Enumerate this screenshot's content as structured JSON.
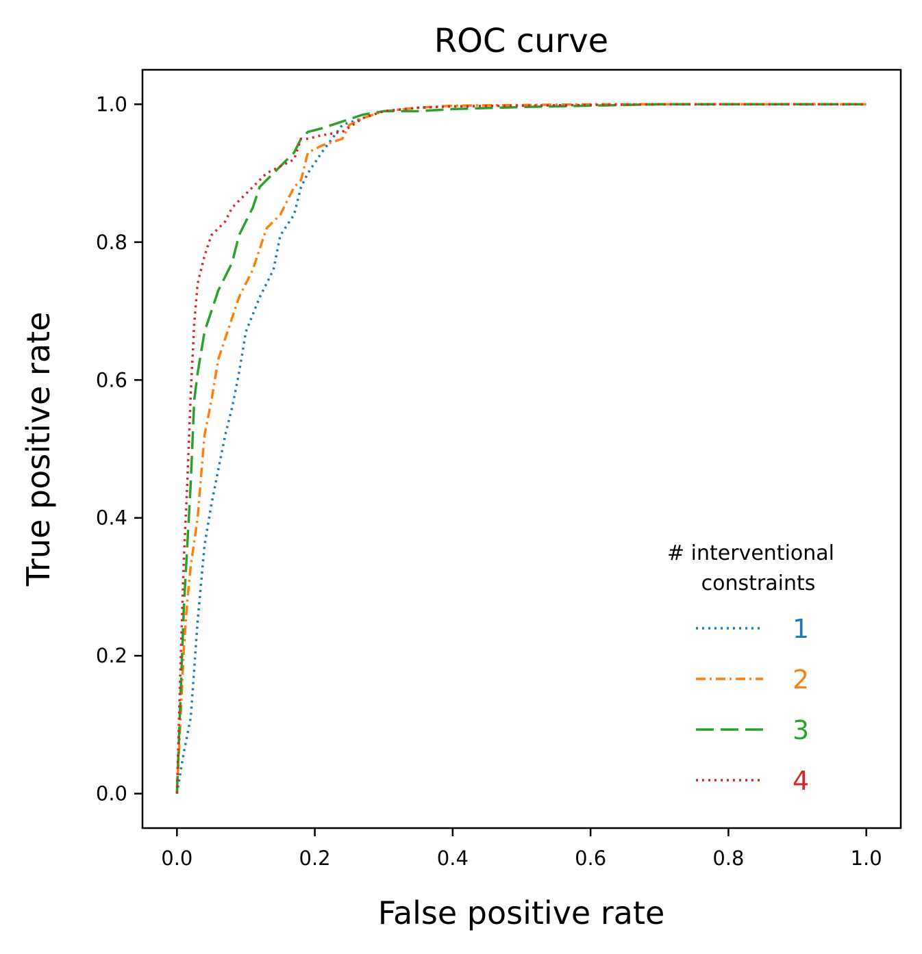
{
  "chart_data": {
    "type": "line",
    "title": "ROC curve",
    "xlabel": "False positive rate",
    "ylabel": "True positive rate",
    "xlim": [
      -0.05,
      1.05
    ],
    "ylim": [
      -0.05,
      1.05
    ],
    "xticks": [
      0.0,
      0.2,
      0.4,
      0.6,
      0.8,
      1.0
    ],
    "xtick_labels": [
      "0.0",
      "0.2",
      "0.4",
      "0.6",
      "0.8",
      "1.0"
    ],
    "yticks": [
      0.0,
      0.2,
      0.4,
      0.6,
      0.8,
      1.0
    ],
    "ytick_labels": [
      "0.0",
      "0.2",
      "0.4",
      "0.6",
      "0.8",
      "1.0"
    ],
    "grid": false,
    "legend": {
      "title_lines": [
        "# interventional",
        "constraints"
      ],
      "placement": "lower-right"
    },
    "series": [
      {
        "name": "1",
        "color": "#1f77b4",
        "dash": "dotted",
        "x": [
          0.0,
          0.01,
          0.02,
          0.03,
          0.04,
          0.05,
          0.06,
          0.07,
          0.08,
          0.09,
          0.1,
          0.12,
          0.14,
          0.15,
          0.17,
          0.18,
          0.19,
          0.21,
          0.24,
          0.27,
          0.3,
          0.35,
          0.4,
          0.5,
          0.6,
          0.7,
          0.8,
          0.9,
          1.0
        ],
        "y": [
          0.0,
          0.06,
          0.11,
          0.25,
          0.36,
          0.42,
          0.47,
          0.52,
          0.56,
          0.61,
          0.67,
          0.72,
          0.76,
          0.81,
          0.84,
          0.88,
          0.9,
          0.93,
          0.97,
          0.98,
          0.99,
          0.995,
          0.997,
          0.998,
          0.999,
          1.0,
          1.0,
          1.0,
          1.0
        ]
      },
      {
        "name": "2",
        "color": "#ff7f0e",
        "dash": "dashdot",
        "x": [
          0.0,
          0.01,
          0.015,
          0.02,
          0.03,
          0.04,
          0.05,
          0.06,
          0.07,
          0.08,
          0.09,
          0.1,
          0.11,
          0.12,
          0.13,
          0.15,
          0.17,
          0.18,
          0.19,
          0.21,
          0.24,
          0.25,
          0.27,
          0.3,
          0.35,
          0.4,
          0.5,
          0.6,
          0.7,
          0.8,
          0.9,
          1.0
        ],
        "y": [
          0.0,
          0.21,
          0.28,
          0.33,
          0.4,
          0.52,
          0.57,
          0.63,
          0.66,
          0.69,
          0.72,
          0.74,
          0.76,
          0.79,
          0.82,
          0.84,
          0.88,
          0.89,
          0.93,
          0.94,
          0.95,
          0.97,
          0.98,
          0.99,
          0.995,
          0.998,
          0.999,
          1.0,
          1.0,
          1.0,
          1.0,
          1.0
        ]
      },
      {
        "name": "3",
        "color": "#2ca02c",
        "dash": "longdash",
        "x": [
          0.0,
          0.01,
          0.02,
          0.025,
          0.03,
          0.04,
          0.05,
          0.06,
          0.07,
          0.08,
          0.09,
          0.1,
          0.11,
          0.12,
          0.13,
          0.15,
          0.17,
          0.18,
          0.19,
          0.21,
          0.24,
          0.27,
          0.3,
          0.35,
          0.4,
          0.5,
          0.6,
          0.7,
          0.8,
          0.9,
          1.0
        ],
        "y": [
          0.0,
          0.27,
          0.45,
          0.57,
          0.61,
          0.67,
          0.7,
          0.73,
          0.75,
          0.77,
          0.81,
          0.83,
          0.85,
          0.88,
          0.89,
          0.91,
          0.93,
          0.95,
          0.96,
          0.965,
          0.975,
          0.985,
          0.99,
          0.99,
          0.993,
          0.996,
          0.998,
          1.0,
          1.0,
          1.0,
          1.0
        ]
      },
      {
        "name": "4",
        "color": "#d62728",
        "dash": "dotted",
        "x": [
          0.0,
          0.005,
          0.01,
          0.015,
          0.02,
          0.025,
          0.03,
          0.04,
          0.05,
          0.06,
          0.07,
          0.08,
          0.09,
          0.1,
          0.11,
          0.12,
          0.13,
          0.15,
          0.17,
          0.18,
          0.19,
          0.21,
          0.24,
          0.27,
          0.3,
          0.35,
          0.4,
          0.5,
          0.6,
          0.7,
          0.8,
          0.9,
          1.0
        ],
        "y": [
          0.0,
          0.18,
          0.34,
          0.45,
          0.58,
          0.68,
          0.74,
          0.78,
          0.81,
          0.82,
          0.83,
          0.85,
          0.86,
          0.87,
          0.88,
          0.89,
          0.9,
          0.91,
          0.92,
          0.95,
          0.95,
          0.955,
          0.96,
          0.98,
          0.99,
          0.995,
          0.997,
          0.998,
          0.999,
          1.0,
          1.0,
          1.0,
          1.0
        ]
      }
    ]
  }
}
